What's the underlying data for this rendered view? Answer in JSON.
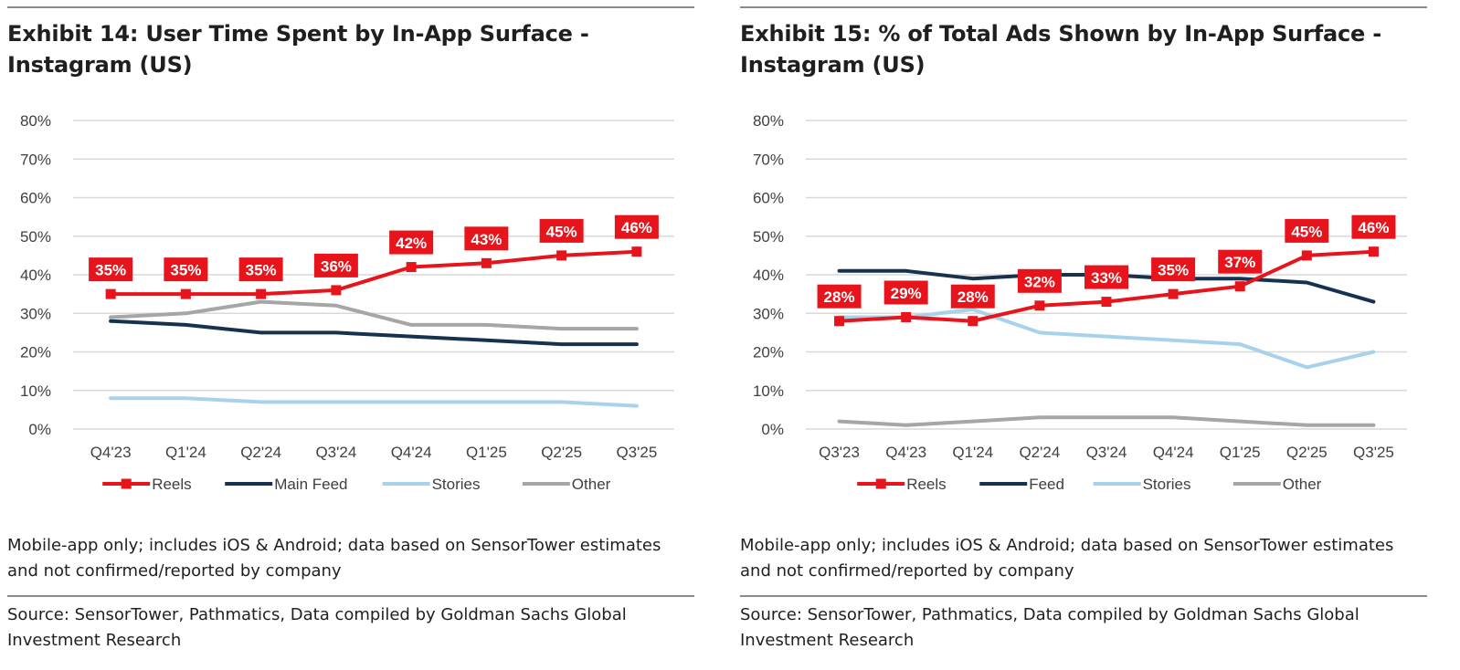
{
  "exhibits": [
    {
      "title": "Exhibit 14: User Time Spent by In-App Surface - Instagram (US)",
      "note": "Mobile-app only; includes iOS & Android; data based on SensorTower estimates and not confirmed/reported by company",
      "source": "Source: SensorTower, Pathmatics, Data compiled by Goldman Sachs Global Investment Research"
    },
    {
      "title": "Exhibit 15: % of Total Ads Shown by In-App Surface - Instagram (US)",
      "note": "Mobile-app only; includes iOS & Android; data based on SensorTower estimates and not confirmed/reported by company",
      "source": "Source: SensorTower, Pathmatics, Data compiled by Goldman Sachs Global Investment Research"
    }
  ],
  "colors": {
    "reels": "#e8141b",
    "feed": "#16324f",
    "stories": "#a8d2ec",
    "other": "#a6a6a6",
    "label_bg": "#e8141b",
    "grid": "#d9d9d9"
  },
  "chart_data": [
    {
      "type": "line",
      "title": "Exhibit 14: User Time Spent by In-App Surface - Instagram (US)",
      "categories": [
        "Q4'23",
        "Q1'24",
        "Q2'24",
        "Q3'24",
        "Q4'24",
        "Q1'25",
        "Q2'25",
        "Q3'25"
      ],
      "y_ticks": [
        "0%",
        "10%",
        "20%",
        "30%",
        "40%",
        "50%",
        "60%",
        "70%",
        "80%"
      ],
      "ylim": [
        0,
        80
      ],
      "grid": true,
      "legend": "bottom",
      "series": [
        {
          "key": "reels",
          "name": "Reels",
          "values": [
            35,
            35,
            35,
            36,
            42,
            43,
            45,
            46
          ],
          "markers": true,
          "labels": [
            "35%",
            "35%",
            "35%",
            "36%",
            "42%",
            "43%",
            "45%",
            "46%"
          ]
        },
        {
          "key": "feed",
          "name": "Main Feed",
          "values": [
            28,
            27,
            25,
            25,
            24,
            23,
            22,
            22
          ]
        },
        {
          "key": "stories",
          "name": "Stories",
          "values": [
            8,
            8,
            7,
            7,
            7,
            7,
            7,
            6
          ]
        },
        {
          "key": "other",
          "name": "Other",
          "values": [
            29,
            30,
            33,
            32,
            27,
            27,
            26,
            26
          ]
        }
      ]
    },
    {
      "type": "line",
      "title": "Exhibit 15: % of Total Ads Shown by In-App Surface - Instagram (US)",
      "categories": [
        "Q3'23",
        "Q4'23",
        "Q1'24",
        "Q2'24",
        "Q3'24",
        "Q4'24",
        "Q1'25",
        "Q2'25",
        "Q3'25"
      ],
      "y_ticks": [
        "0%",
        "10%",
        "20%",
        "30%",
        "40%",
        "50%",
        "60%",
        "70%",
        "80%"
      ],
      "ylim": [
        0,
        80
      ],
      "grid": true,
      "legend": "bottom",
      "series": [
        {
          "key": "reels",
          "name": "Reels",
          "values": [
            28,
            29,
            28,
            32,
            33,
            35,
            37,
            45,
            46
          ],
          "markers": true,
          "labels": [
            "28%",
            "29%",
            "28%",
            "32%",
            "33%",
            "35%",
            "37%",
            "45%",
            "46%"
          ]
        },
        {
          "key": "feed",
          "name": "Feed",
          "values": [
            41,
            41,
            39,
            40,
            40,
            39,
            39,
            38,
            33
          ]
        },
        {
          "key": "stories",
          "name": "Stories",
          "values": [
            29,
            29,
            31,
            25,
            24,
            23,
            22,
            16,
            20
          ]
        },
        {
          "key": "other",
          "name": "Other",
          "values": [
            2,
            1,
            2,
            3,
            3,
            3,
            2,
            1,
            1
          ]
        }
      ]
    }
  ]
}
